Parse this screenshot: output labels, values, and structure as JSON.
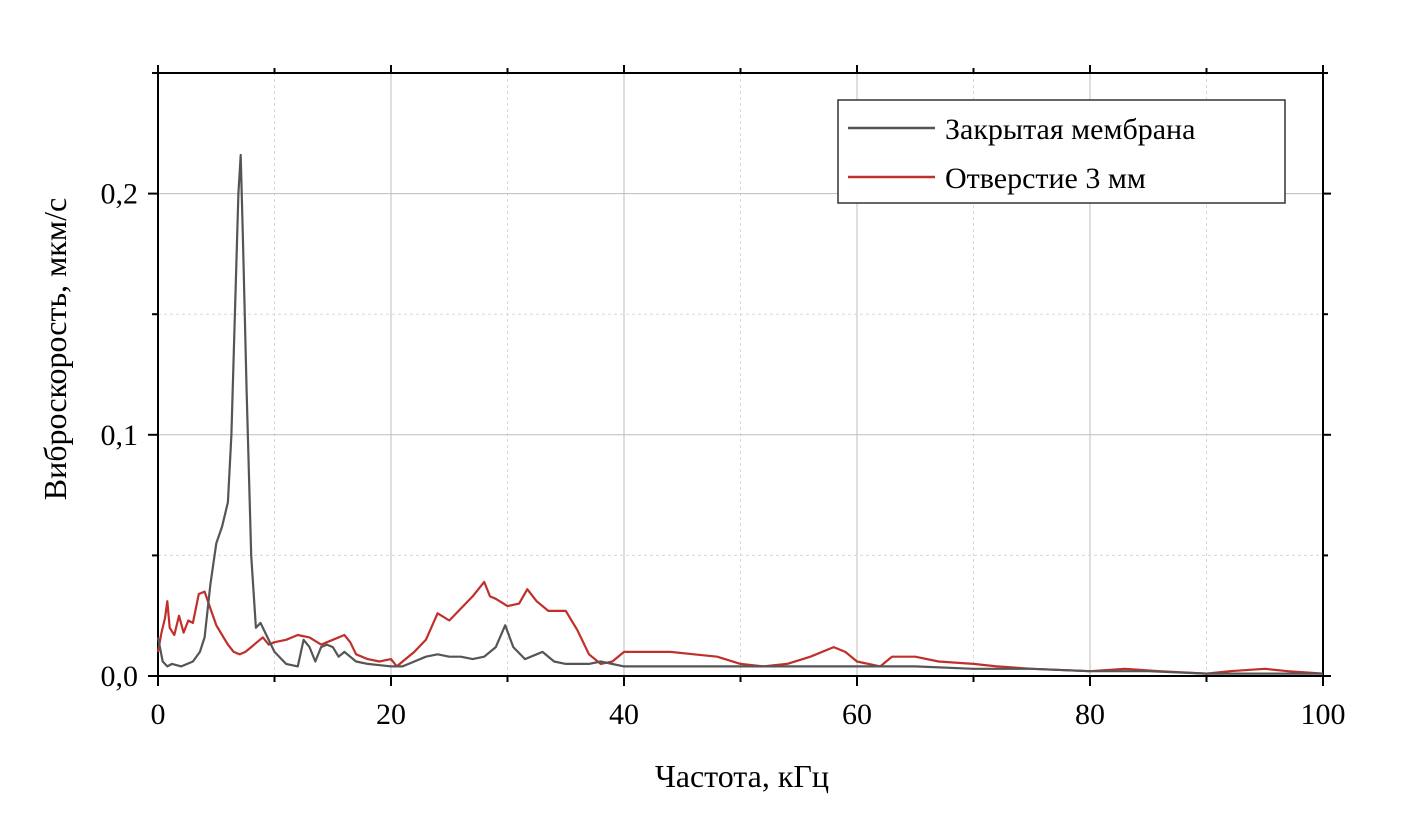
{
  "chart_data": {
    "type": "line",
    "title": "",
    "xlabel": "Частота, кГц",
    "ylabel": "Виброскорость, мкм/с",
    "xlim": [
      0,
      100
    ],
    "ylim": [
      0,
      0.25
    ],
    "x_ticks": [
      0,
      20,
      40,
      60,
      80,
      100
    ],
    "x_tick_labels": [
      "0",
      "20",
      "40",
      "60",
      "80",
      "100"
    ],
    "y_ticks": [
      0,
      0.1,
      0.2
    ],
    "y_tick_labels": [
      "0,0",
      "0,1",
      "0,2"
    ],
    "grid": true,
    "legend_position": "top-right",
    "series": [
      {
        "name": "Закрытая мембрана",
        "color": "#555555",
        "points": [
          [
            0,
            0.016
          ],
          [
            0.4,
            0.006
          ],
          [
            0.8,
            0.004
          ],
          [
            1.2,
            0.005
          ],
          [
            2,
            0.004
          ],
          [
            3,
            0.006
          ],
          [
            3.6,
            0.01
          ],
          [
            4,
            0.016
          ],
          [
            4.5,
            0.038
          ],
          [
            5,
            0.055
          ],
          [
            5.5,
            0.062
          ],
          [
            6,
            0.072
          ],
          [
            6.3,
            0.1
          ],
          [
            6.6,
            0.15
          ],
          [
            6.9,
            0.2
          ],
          [
            7.1,
            0.216
          ],
          [
            7.3,
            0.18
          ],
          [
            7.6,
            0.12
          ],
          [
            8,
            0.05
          ],
          [
            8.4,
            0.02
          ],
          [
            8.8,
            0.022
          ],
          [
            9.2,
            0.018
          ],
          [
            10,
            0.01
          ],
          [
            11,
            0.005
          ],
          [
            12,
            0.004
          ],
          [
            12.5,
            0.015
          ],
          [
            13,
            0.012
          ],
          [
            13.5,
            0.006
          ],
          [
            14,
            0.012
          ],
          [
            14.5,
            0.013
          ],
          [
            15,
            0.012
          ],
          [
            15.5,
            0.008
          ],
          [
            16,
            0.01
          ],
          [
            16.5,
            0.008
          ],
          [
            17,
            0.006
          ],
          [
            18,
            0.005
          ],
          [
            20,
            0.004
          ],
          [
            21,
            0.004
          ],
          [
            22,
            0.006
          ],
          [
            23,
            0.008
          ],
          [
            24,
            0.009
          ],
          [
            25,
            0.008
          ],
          [
            26,
            0.008
          ],
          [
            27,
            0.007
          ],
          [
            28,
            0.008
          ],
          [
            29,
            0.012
          ],
          [
            29.8,
            0.021
          ],
          [
            30.5,
            0.012
          ],
          [
            31.5,
            0.007
          ],
          [
            32.5,
            0.009
          ],
          [
            33,
            0.01
          ],
          [
            34,
            0.006
          ],
          [
            35,
            0.005
          ],
          [
            37,
            0.005
          ],
          [
            38,
            0.006
          ],
          [
            40,
            0.004
          ],
          [
            45,
            0.004
          ],
          [
            50,
            0.004
          ],
          [
            55,
            0.004
          ],
          [
            60,
            0.004
          ],
          [
            65,
            0.004
          ],
          [
            70,
            0.003
          ],
          [
            75,
            0.003
          ],
          [
            80,
            0.002
          ],
          [
            85,
            0.002
          ],
          [
            90,
            0.001
          ],
          [
            95,
            0.001
          ],
          [
            100,
            0.001
          ]
        ]
      },
      {
        "name": "Отверстие 3 мм",
        "color": "#c0302a",
        "points": [
          [
            0,
            0.01
          ],
          [
            0.3,
            0.018
          ],
          [
            0.6,
            0.024
          ],
          [
            0.8,
            0.031
          ],
          [
            1.0,
            0.02
          ],
          [
            1.4,
            0.017
          ],
          [
            1.8,
            0.025
          ],
          [
            2.2,
            0.018
          ],
          [
            2.6,
            0.023
          ],
          [
            3,
            0.022
          ],
          [
            3.5,
            0.034
          ],
          [
            4,
            0.035
          ],
          [
            4.5,
            0.028
          ],
          [
            5,
            0.021
          ],
          [
            5.5,
            0.017
          ],
          [
            6,
            0.013
          ],
          [
            6.5,
            0.01
          ],
          [
            7,
            0.009
          ],
          [
            7.5,
            0.01
          ],
          [
            8,
            0.012
          ],
          [
            8.5,
            0.014
          ],
          [
            9,
            0.016
          ],
          [
            9.5,
            0.013
          ],
          [
            10,
            0.014
          ],
          [
            11,
            0.015
          ],
          [
            12,
            0.017
          ],
          [
            13,
            0.016
          ],
          [
            14,
            0.013
          ],
          [
            15,
            0.015
          ],
          [
            16,
            0.017
          ],
          [
            16.5,
            0.014
          ],
          [
            17,
            0.009
          ],
          [
            18,
            0.007
          ],
          [
            19,
            0.006
          ],
          [
            20,
            0.007
          ],
          [
            20.5,
            0.004
          ],
          [
            21,
            0.006
          ],
          [
            22,
            0.01
          ],
          [
            23,
            0.015
          ],
          [
            24,
            0.026
          ],
          [
            25,
            0.023
          ],
          [
            26,
            0.028
          ],
          [
            27,
            0.033
          ],
          [
            28,
            0.039
          ],
          [
            28.5,
            0.033
          ],
          [
            29,
            0.032
          ],
          [
            30,
            0.029
          ],
          [
            31,
            0.03
          ],
          [
            31.7,
            0.036
          ],
          [
            32.5,
            0.031
          ],
          [
            33.5,
            0.027
          ],
          [
            35,
            0.027
          ],
          [
            36,
            0.019
          ],
          [
            37,
            0.009
          ],
          [
            38,
            0.005
          ],
          [
            39,
            0.006
          ],
          [
            40,
            0.01
          ],
          [
            42,
            0.01
          ],
          [
            44,
            0.01
          ],
          [
            46,
            0.009
          ],
          [
            48,
            0.008
          ],
          [
            50,
            0.005
          ],
          [
            52,
            0.004
          ],
          [
            54,
            0.005
          ],
          [
            56,
            0.008
          ],
          [
            58,
            0.012
          ],
          [
            59,
            0.01
          ],
          [
            60,
            0.006
          ],
          [
            62,
            0.004
          ],
          [
            63,
            0.008
          ],
          [
            65,
            0.008
          ],
          [
            67,
            0.006
          ],
          [
            70,
            0.005
          ],
          [
            72,
            0.004
          ],
          [
            75,
            0.003
          ],
          [
            80,
            0.002
          ],
          [
            83,
            0.003
          ],
          [
            86,
            0.002
          ],
          [
            90,
            0.001
          ],
          [
            92,
            0.002
          ],
          [
            95,
            0.003
          ],
          [
            97,
            0.002
          ],
          [
            100,
            0.001
          ]
        ]
      }
    ]
  }
}
